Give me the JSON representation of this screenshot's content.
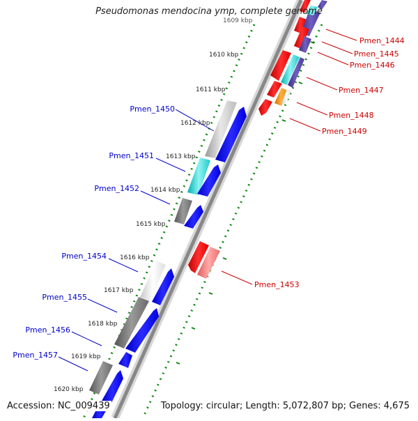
{
  "title": "Pseudomonas mendocina ymp, complete genome",
  "footer": {
    "accession": "Accession: NC_009439",
    "topology": "Topology: circular; Length: 5,072,807 bp; Genes: 4,675"
  },
  "scale_ticks": [
    "1609 kbp",
    "1610 kbp",
    "1611 kbp",
    "1612 kbp",
    "1613 kbp",
    "1614 kbp",
    "1615 kbp",
    "1616 kbp",
    "1617 kbp",
    "1618 kbp",
    "1619 kbp",
    "1620 kbp"
  ],
  "genes_left": [
    "Pmen_1450",
    "Pmen_1451",
    "Pmen_1452",
    "Pmen_1454",
    "Pmen_1455",
    "Pmen_1456",
    "Pmen_1457"
  ],
  "genes_right": [
    "Pmen_1444",
    "Pmen_1445",
    "Pmen_1446",
    "Pmen_1447",
    "Pmen_1448",
    "Pmen_1449",
    "Pmen_1453"
  ],
  "colors": {
    "forward_cds": "#0000ee",
    "reverse_cds": "#ee0000",
    "backbone": "#888888",
    "tick_dots": "#118811",
    "left_label": "#0000cc",
    "right_label": "#cc0000"
  }
}
